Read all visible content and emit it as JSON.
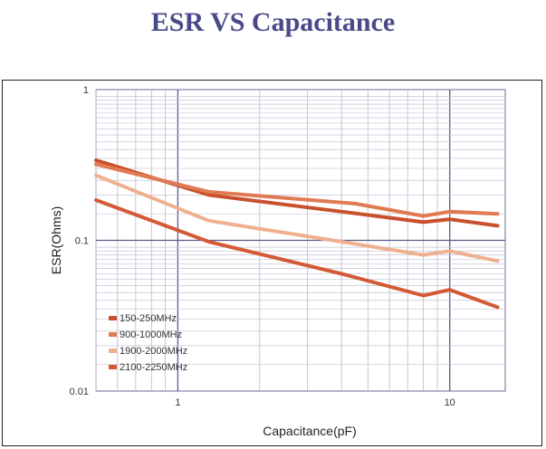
{
  "title": "ESR VS Capacitance",
  "chart_data": {
    "type": "line",
    "title": "ESR VS Capacitance",
    "xlabel": "Capacitance(pF)",
    "ylabel": "ESR(Ohms)",
    "xscale": "log",
    "yscale": "log",
    "xlim": [
      0.5,
      16
    ],
    "ylim": [
      0.01,
      1
    ],
    "x_tick_labels": [
      {
        "value": 1,
        "label": "1"
      },
      {
        "value": 10,
        "label": "10"
      }
    ],
    "y_tick_labels": [
      {
        "value": 1,
        "label": "1"
      },
      {
        "value": 0.1,
        "label": "0.1"
      },
      {
        "value": 0.01,
        "label": "0.01"
      }
    ],
    "grid": true,
    "legend_position": "bottom-left",
    "series": [
      {
        "name": "150-250MHz",
        "color": "#c8502c",
        "points": [
          [
            0.5,
            0.34
          ],
          [
            1.3,
            0.2
          ],
          [
            4,
            0.155
          ],
          [
            8,
            0.132
          ],
          [
            10,
            0.138
          ],
          [
            15,
            0.125
          ]
        ]
      },
      {
        "name": "900-1000MHz",
        "color": "#e07a52",
        "points": [
          [
            0.5,
            0.32
          ],
          [
            1.3,
            0.21
          ],
          [
            4.5,
            0.175
          ],
          [
            8,
            0.145
          ],
          [
            10,
            0.155
          ],
          [
            15,
            0.15
          ]
        ]
      },
      {
        "name": "1900-2000MHz",
        "color": "#f0b090",
        "points": [
          [
            0.5,
            0.27
          ],
          [
            1.3,
            0.135
          ],
          [
            4,
            0.098
          ],
          [
            8,
            0.08
          ],
          [
            10,
            0.085
          ],
          [
            15,
            0.073
          ]
        ]
      },
      {
        "name": "2100-2250MHz",
        "color": "#d35a35",
        "points": [
          [
            0.5,
            0.185
          ],
          [
            1.3,
            0.098
          ],
          [
            4,
            0.06
          ],
          [
            8,
            0.043
          ],
          [
            10,
            0.047
          ],
          [
            15,
            0.036
          ]
        ]
      }
    ]
  }
}
